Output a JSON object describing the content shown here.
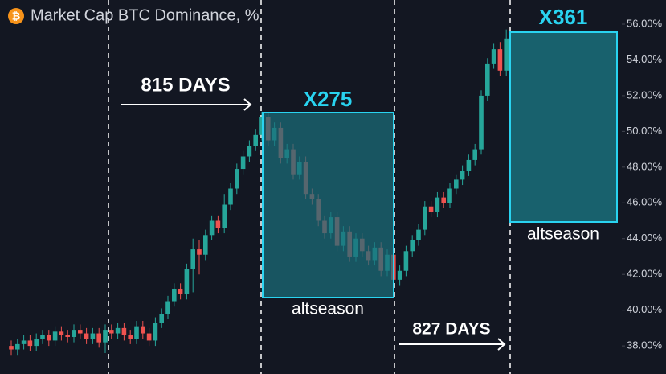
{
  "chart_data": {
    "type": "candlestick",
    "title": "Market Cap BTC Dominance, %",
    "up_color": "#26a69a",
    "down_color": "#ef5350",
    "open": [
      38.0,
      37.8,
      38.1,
      38.3,
      38.0,
      38.4,
      38.6,
      38.3,
      38.8,
      38.6,
      38.5,
      38.9,
      38.7,
      38.4,
      38.7,
      38.2,
      38.9,
      38.7,
      39.0,
      38.6,
      38.4,
      39.1,
      38.7,
      38.3,
      39.3,
      39.8,
      40.5,
      41.2,
      40.9,
      42.3,
      43.4,
      43.1,
      44.2,
      45.0,
      44.6,
      45.9,
      46.8,
      47.9,
      48.6,
      49.2,
      49.8,
      50.8,
      49.5,
      50.2,
      48.5,
      49.0,
      47.6,
      48.3,
      46.5,
      46.2,
      45.0,
      44.3,
      45.2,
      43.6,
      44.4,
      43.0,
      44.0,
      43.3,
      42.8,
      43.5,
      42.2,
      43.1,
      41.7,
      42.2,
      43.3,
      43.9,
      44.5,
      45.8,
      45.5,
      46.3,
      46.0,
      46.8,
      47.3,
      47.8,
      48.4,
      49.0,
      52.0,
      53.8,
      54.6,
      53.4
    ],
    "high": [
      38.3,
      38.4,
      38.6,
      38.6,
      38.7,
      38.9,
      38.9,
      39.1,
      39.1,
      38.9,
      39.2,
      39.2,
      39.0,
      39.0,
      39.0,
      39.2,
      39.2,
      39.3,
      39.3,
      38.9,
      39.4,
      39.4,
      39.0,
      39.6,
      40.1,
      40.8,
      41.5,
      41.5,
      42.6,
      44.0,
      43.9,
      44.5,
      45.3,
      45.3,
      46.5,
      47.1,
      48.2,
      48.9,
      49.5,
      50.1,
      51.1,
      51.1,
      50.5,
      50.5,
      49.3,
      49.3,
      48.6,
      48.6,
      46.8,
      46.5,
      45.3,
      45.5,
      45.5,
      44.7,
      44.7,
      44.3,
      44.3,
      43.6,
      43.8,
      43.8,
      43.4,
      43.4,
      42.5,
      43.6,
      44.2,
      44.8,
      46.1,
      46.1,
      46.6,
      46.6,
      47.1,
      47.6,
      48.1,
      48.7,
      49.3,
      52.3,
      54.1,
      54.9,
      55.0,
      55.7
    ],
    "low": [
      37.5,
      37.5,
      37.8,
      37.7,
      37.7,
      38.1,
      38.0,
      38.0,
      38.3,
      38.2,
      38.2,
      38.4,
      38.1,
      38.1,
      37.9,
      37.6,
      38.4,
      38.4,
      38.3,
      38.1,
      38.1,
      38.4,
      38.0,
      38.0,
      39.0,
      39.5,
      40.2,
      40.6,
      40.6,
      41.0,
      42.0,
      42.8,
      43.9,
      44.3,
      44.3,
      45.6,
      46.5,
      47.6,
      48.3,
      48.9,
      49.5,
      49.2,
      49.2,
      48.2,
      48.2,
      47.3,
      47.3,
      46.2,
      45.9,
      44.7,
      44.0,
      44.0,
      43.3,
      43.3,
      42.7,
      42.7,
      43.0,
      42.5,
      42.5,
      41.9,
      41.9,
      41.4,
      41.4,
      41.9,
      43.0,
      43.6,
      44.2,
      45.2,
      45.2,
      45.7,
      45.7,
      46.5,
      47.0,
      47.5,
      48.1,
      48.7,
      51.7,
      53.5,
      53.1,
      53.1
    ],
    "close": [
      37.8,
      38.1,
      38.3,
      38.0,
      38.4,
      38.6,
      38.3,
      38.8,
      38.6,
      38.5,
      38.9,
      38.7,
      38.4,
      38.7,
      38.2,
      38.9,
      38.7,
      39.0,
      38.6,
      38.4,
      39.1,
      38.7,
      38.3,
      39.3,
      39.8,
      40.5,
      41.2,
      40.9,
      42.3,
      43.4,
      43.1,
      44.2,
      45.0,
      44.6,
      45.9,
      46.8,
      47.9,
      48.6,
      49.2,
      49.8,
      50.8,
      49.5,
      50.2,
      48.5,
      49.0,
      47.6,
      48.3,
      46.5,
      46.2,
      45.0,
      44.3,
      45.2,
      43.6,
      44.4,
      43.0,
      44.0,
      43.3,
      42.8,
      43.5,
      42.2,
      43.1,
      41.7,
      42.2,
      43.3,
      43.9,
      44.5,
      45.8,
      45.5,
      46.3,
      46.0,
      46.8,
      47.3,
      47.8,
      48.4,
      49.0,
      52.0,
      53.8,
      54.6,
      53.4,
      55.2
    ],
    "ylim": [
      36.43,
      57.35
    ],
    "yticks": [
      {
        "value": 38,
        "label": "38.00%"
      },
      {
        "value": 40,
        "label": "40.00%"
      },
      {
        "value": 42,
        "label": "42.00%"
      },
      {
        "value": 44,
        "label": "44.00%"
      },
      {
        "value": 46,
        "label": "46.00%"
      },
      {
        "value": 48,
        "label": "48.00%"
      },
      {
        "value": 50,
        "label": "50.00%"
      },
      {
        "value": 52,
        "label": "52.00%"
      },
      {
        "value": 54,
        "label": "54.00%"
      },
      {
        "value": 56,
        "label": "56.00%"
      }
    ],
    "annotations": [
      "815 DAYS",
      "X275",
      "altseason",
      "827 DAYS",
      "X361",
      "altseason"
    ]
  }
}
